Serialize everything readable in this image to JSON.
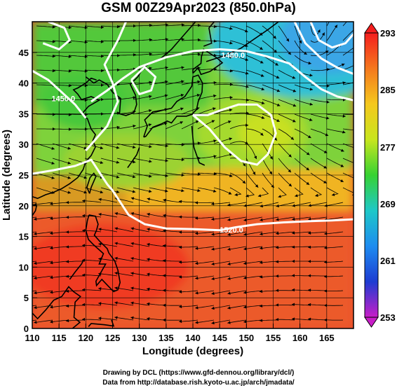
{
  "title": "GSM 00Z29Apr2023 (850.0hPa)",
  "footer": {
    "line1": "Drawing by DCL (https://www.gfd-dennou.org/library/dcl/)",
    "line2": "Data from http://database.rish.kyoto-u.ac.jp/arch/jmadata/"
  },
  "chart_data": {
    "type": "heatmap",
    "xlabel": "Longitude (degrees)",
    "ylabel": "Latitude  (degrees)",
    "xlim": [
      110,
      170
    ],
    "ylim": [
      0,
      50
    ],
    "xticks": [
      "110",
      "115",
      "120",
      "125",
      "130",
      "135",
      "140",
      "145",
      "150",
      "155",
      "160",
      "165"
    ],
    "yticks": [
      "0",
      "5",
      "10",
      "15",
      "20",
      "25",
      "30",
      "35",
      "40",
      "45"
    ],
    "colorbar": {
      "labels": [
        "293",
        "285",
        "277",
        "269",
        "261",
        "253"
      ],
      "stops": [
        "#f51e1e",
        "#f5781e",
        "#f5c81e",
        "#c8e61e",
        "#37d232",
        "#1ec8c8",
        "#1e8cf0",
        "#1e3cd2",
        "#c81ec8"
      ]
    },
    "contour_labels": [
      {
        "text": "1520.0",
        "lon": 147.2,
        "lat": 16.1
      },
      {
        "text": "1480.0",
        "lon": 147.5,
        "lat": 44.6
      },
      {
        "text": "1450.0",
        "lon": 115.8,
        "lat": 37.5
      }
    ],
    "colors": {
      "background": "#ffffff",
      "contour": "#ffffff",
      "streamline": "#000000"
    }
  }
}
